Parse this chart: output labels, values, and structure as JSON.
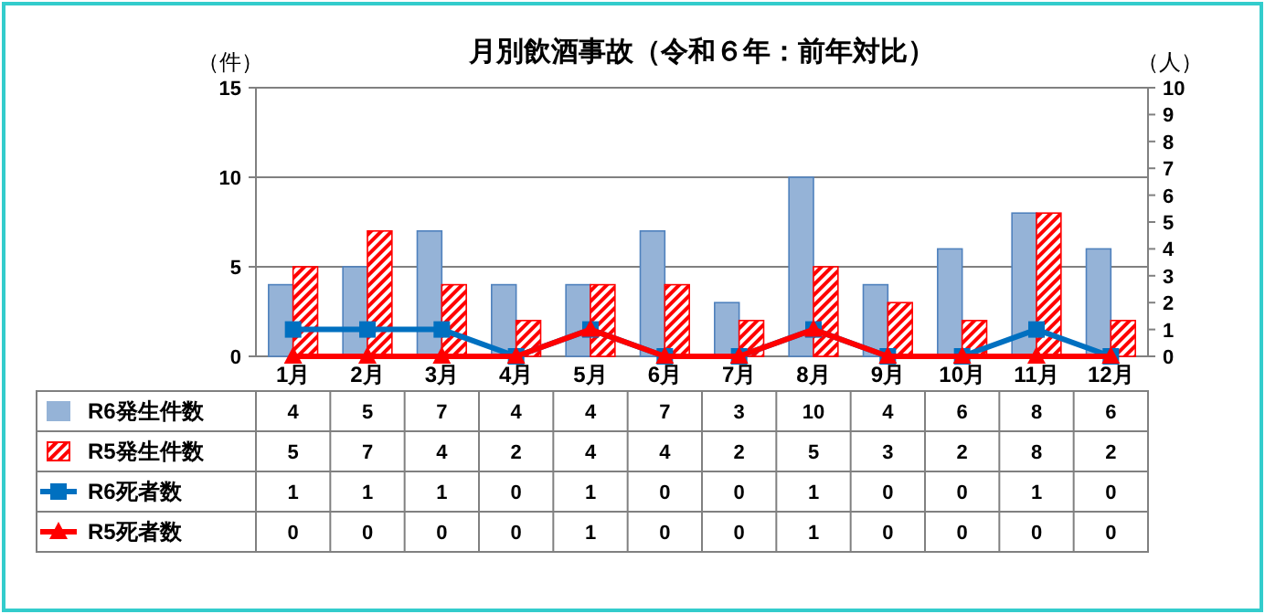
{
  "chart_data": {
    "type": "bar",
    "title": "月別飲酒事故（令和６年：前年対比）",
    "ylabel": "（件）",
    "y2label": "（人）",
    "categories": [
      "1月",
      "2月",
      "3月",
      "4月",
      "5月",
      "6月",
      "7月",
      "8月",
      "9月",
      "10月",
      "11月",
      "12月"
    ],
    "series": [
      {
        "name": "R6発生件数",
        "color": "#95b3d7",
        "values": [
          4,
          5,
          7,
          4,
          4,
          7,
          3,
          10,
          4,
          6,
          8,
          6
        ]
      },
      {
        "name": "R5発生件数",
        "color": "#ff0000",
        "values": [
          5,
          7,
          4,
          2,
          4,
          4,
          2,
          5,
          3,
          2,
          8,
          2
        ]
      },
      {
        "name": "R6死者数",
        "type": "line",
        "axis": "y2",
        "marker": "square",
        "color": "#0070c0",
        "values": [
          1,
          1,
          1,
          0,
          1,
          0,
          0,
          1,
          0,
          0,
          1,
          0
        ]
      },
      {
        "name": "R5死者数",
        "type": "line",
        "axis": "y2",
        "marker": "triangle",
        "color": "#ff0000",
        "values": [
          0,
          0,
          0,
          0,
          1,
          0,
          0,
          1,
          0,
          0,
          0,
          0
        ]
      }
    ],
    "ylim": [
      0,
      15
    ],
    "yticks": [
      0,
      5,
      10,
      15
    ],
    "y2lim": [
      0,
      10
    ],
    "y2ticks": [
      0,
      1,
      2,
      3,
      4,
      5,
      6,
      7,
      8,
      9,
      10
    ],
    "grid": "y",
    "legend": "bottom",
    "data_labels": true
  }
}
